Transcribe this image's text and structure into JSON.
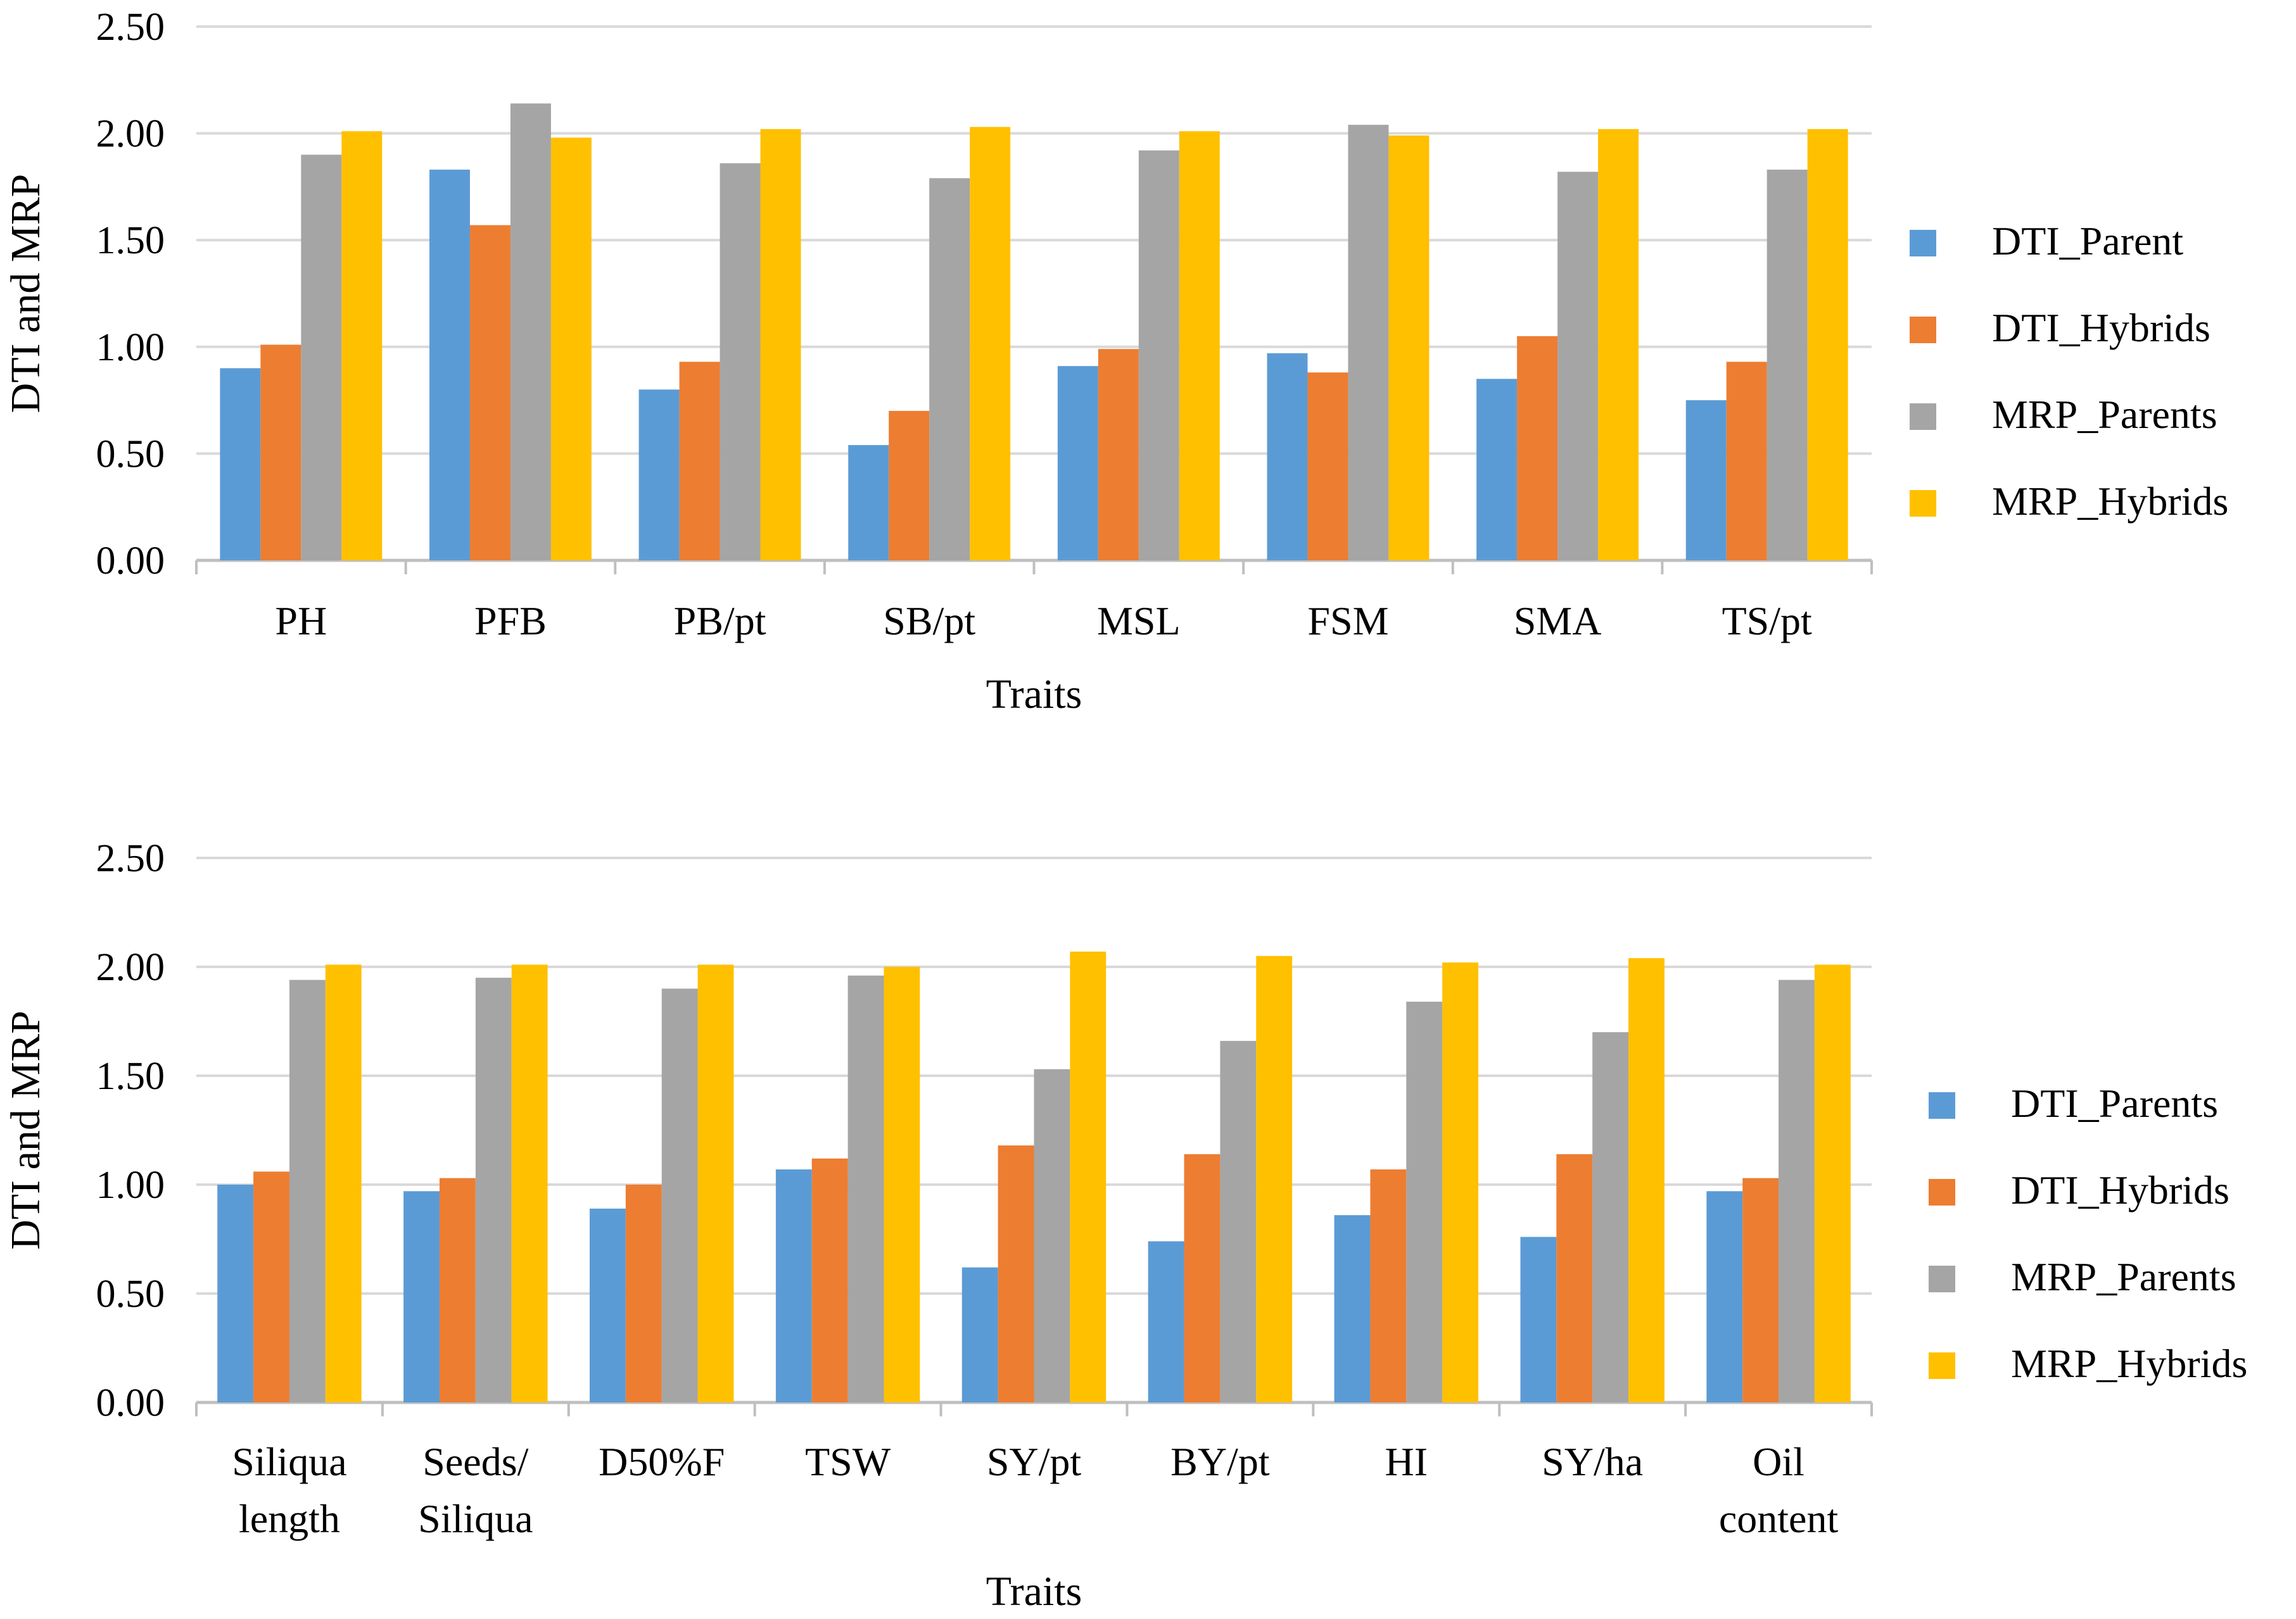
{
  "chart_data": [
    {
      "type": "bar",
      "title": "",
      "xlabel": "Traits",
      "ylabel": "DTI and MRP",
      "ylim": [
        0,
        2.5
      ],
      "yticks": [
        "0.00",
        "0.50",
        "1.00",
        "1.50",
        "2.00",
        "2.50"
      ],
      "grid": true,
      "legend_position": "right",
      "categories": [
        {
          "name": "PH",
          "lines": [
            "PH"
          ]
        },
        {
          "name": "PFB",
          "lines": [
            "PFB"
          ]
        },
        {
          "name": "PB/pt",
          "lines": [
            "PB/pt"
          ]
        },
        {
          "name": "SB/pt",
          "lines": [
            "SB/pt"
          ]
        },
        {
          "name": "MSL",
          "lines": [
            "MSL"
          ]
        },
        {
          "name": "FSM",
          "lines": [
            "FSM"
          ]
        },
        {
          "name": "SMA",
          "lines": [
            "SMA"
          ]
        },
        {
          "name": "TS/pt",
          "lines": [
            "TS/pt"
          ]
        }
      ],
      "series": [
        {
          "name": "DTI_Parent",
          "color": "#5B9BD5",
          "values": [
            0.9,
            1.83,
            0.8,
            0.54,
            0.91,
            0.97,
            0.85,
            0.75
          ]
        },
        {
          "name": "DTI_Hybrids",
          "color": "#ED7D31",
          "values": [
            1.01,
            1.57,
            0.93,
            0.7,
            0.99,
            0.88,
            1.05,
            0.93
          ]
        },
        {
          "name": "MRP_Parents",
          "color": "#A5A5A5",
          "values": [
            1.9,
            2.14,
            1.86,
            1.79,
            1.92,
            2.04,
            1.82,
            1.83
          ]
        },
        {
          "name": "MRP_Hybrids",
          "color": "#FFC000",
          "values": [
            2.01,
            1.98,
            2.02,
            2.03,
            2.01,
            1.99,
            2.02,
            2.02
          ]
        }
      ]
    },
    {
      "type": "bar",
      "title": "",
      "xlabel": "Traits",
      "ylabel": "DTI and MRP",
      "ylim": [
        0,
        2.5
      ],
      "yticks": [
        "0.00",
        "0.50",
        "1.00",
        "1.50",
        "2.00",
        "2.50"
      ],
      "grid": true,
      "legend_position": "right",
      "categories": [
        {
          "name": "Siliqua length",
          "lines": [
            "Siliqua",
            "length"
          ]
        },
        {
          "name": "Seeds/ Siliqua",
          "lines": [
            "Seeds/",
            "Siliqua"
          ]
        },
        {
          "name": "D50%F",
          "lines": [
            "D50%F"
          ]
        },
        {
          "name": "TSW",
          "lines": [
            "TSW"
          ]
        },
        {
          "name": "SY/pt",
          "lines": [
            "SY/pt"
          ]
        },
        {
          "name": "BY/pt",
          "lines": [
            "BY/pt"
          ]
        },
        {
          "name": "HI",
          "lines": [
            "HI"
          ]
        },
        {
          "name": "SY/ha",
          "lines": [
            "SY/ha"
          ]
        },
        {
          "name": "Oil content",
          "lines": [
            "Oil",
            "content"
          ]
        }
      ],
      "series": [
        {
          "name": "DTI_Parents",
          "color": "#5B9BD5",
          "values": [
            1.0,
            0.97,
            0.89,
            1.07,
            0.62,
            0.74,
            0.86,
            0.76,
            0.97
          ]
        },
        {
          "name": "DTI_Hybrids",
          "color": "#ED7D31",
          "values": [
            1.06,
            1.03,
            1.0,
            1.12,
            1.18,
            1.14,
            1.07,
            1.14,
            1.03
          ]
        },
        {
          "name": "MRP_Parents",
          "color": "#A5A5A5",
          "values": [
            1.94,
            1.95,
            1.9,
            1.96,
            1.53,
            1.66,
            1.84,
            1.7,
            1.94
          ]
        },
        {
          "name": "MRP_Hybrids",
          "color": "#FFC000",
          "values": [
            2.01,
            2.01,
            2.01,
            2.0,
            2.07,
            2.05,
            2.02,
            2.04,
            2.01
          ]
        }
      ]
    }
  ]
}
